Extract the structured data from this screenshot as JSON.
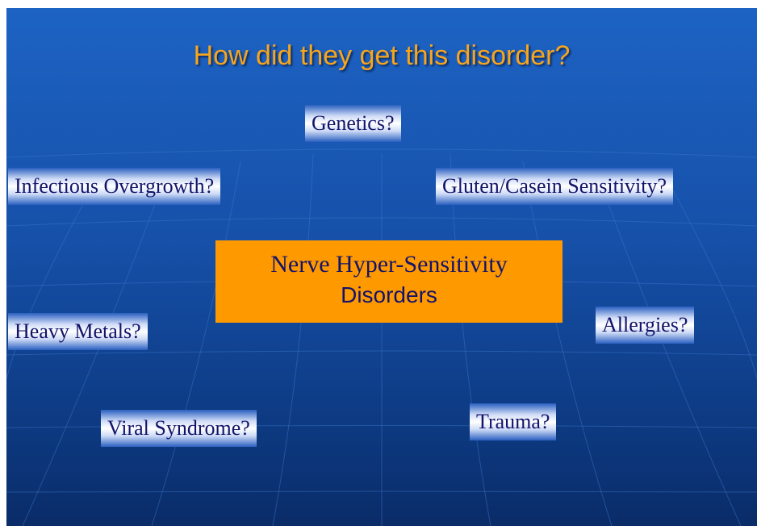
{
  "title": "How did they get this disorder?",
  "center": {
    "lines": [
      "Nerve Hyper-Sensitivity",
      "Disorders"
    ]
  },
  "nodes": [
    {
      "label": "Genetics?"
    },
    {
      "label": "Infectious Overgrowth?"
    },
    {
      "label": "Gluten/Casein Sensitivity?"
    },
    {
      "label": "Heavy Metals?"
    },
    {
      "label": "Allergies?"
    },
    {
      "label": "Viral Syndrome?"
    },
    {
      "label": "Trauma?"
    }
  ]
}
